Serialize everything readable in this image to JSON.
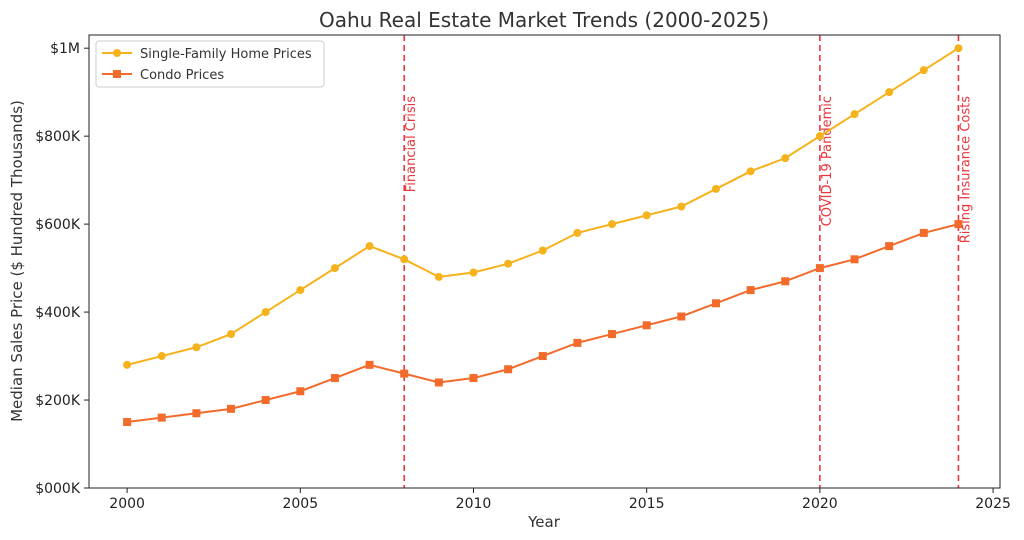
{
  "chart_data": {
    "type": "line",
    "title": "Oahu Real Estate Market Trends (2000-2025)",
    "xlabel": "Year",
    "ylabel": "Median Sales Price ($ Hundred Thousands)",
    "x": [
      2000,
      2001,
      2002,
      2003,
      2004,
      2005,
      2006,
      2007,
      2008,
      2009,
      2010,
      2011,
      2012,
      2013,
      2014,
      2015,
      2016,
      2017,
      2018,
      2019,
      2020,
      2021,
      2022,
      2023,
      2024
    ],
    "xlim": [
      1998.9,
      2025.2
    ],
    "ylim": [
      0,
      1030000
    ],
    "xticks": [
      2000,
      2005,
      2010,
      2015,
      2020,
      2025
    ],
    "yticks": [
      {
        "value": 0,
        "label": "$000K"
      },
      {
        "value": 200000,
        "label": "$200K"
      },
      {
        "value": 400000,
        "label": "$400K"
      },
      {
        "value": 600000,
        "label": "$600K"
      },
      {
        "value": 800000,
        "label": "$800K"
      },
      {
        "value": 1000000,
        "label": "$1M"
      }
    ],
    "grid": false,
    "legend_position": "top-left",
    "series": [
      {
        "name": "Single-Family Home Prices",
        "color": "#F5B21B",
        "marker": "circle",
        "values": [
          280000,
          300000,
          320000,
          350000,
          400000,
          450000,
          500000,
          550000,
          520000,
          480000,
          490000,
          510000,
          540000,
          580000,
          600000,
          620000,
          640000,
          680000,
          720000,
          750000,
          800000,
          850000,
          900000,
          950000,
          1000000
        ]
      },
      {
        "name": "Condo Prices",
        "color": "#F26B2A",
        "marker": "square",
        "values": [
          150000,
          160000,
          170000,
          180000,
          200000,
          220000,
          250000,
          280000,
          260000,
          240000,
          250000,
          270000,
          300000,
          330000,
          350000,
          370000,
          390000,
          420000,
          450000,
          470000,
          500000,
          520000,
          550000,
          580000,
          600000
        ]
      }
    ],
    "annotations": [
      {
        "x": 2008,
        "label": "Financial Crisis",
        "color": "#E8383D"
      },
      {
        "x": 2020,
        "label": "COVID-19 Pandemic",
        "color": "#E8383D"
      },
      {
        "x": 2024,
        "label": "Rising Insurance Costs",
        "color": "#E8383D"
      }
    ]
  }
}
